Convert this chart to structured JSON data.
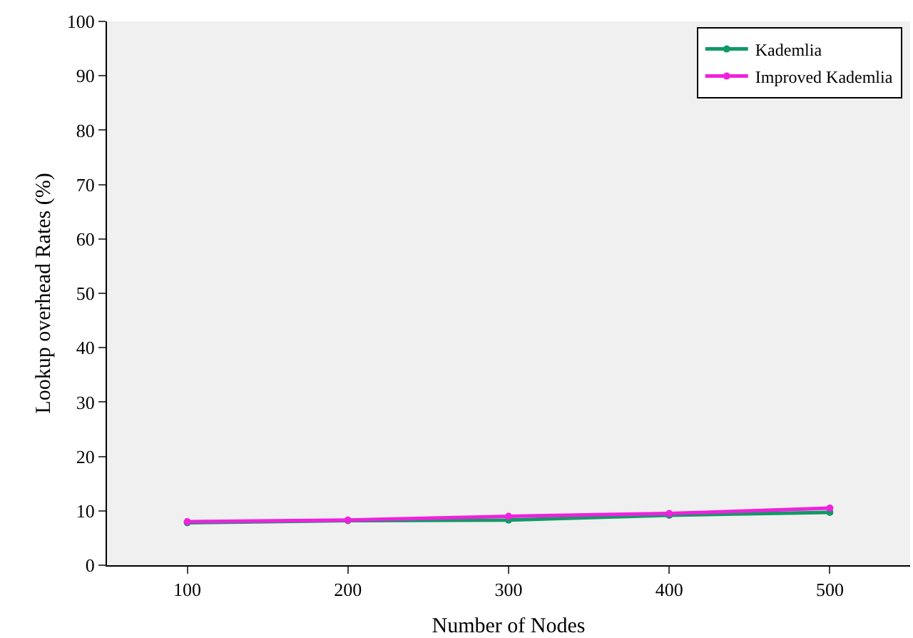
{
  "chart_data": {
    "type": "line",
    "xlabel": "Number of Nodes",
    "ylabel": "Lookup overhead Rates (%)",
    "x": [
      100,
      200,
      300,
      400,
      500
    ],
    "series": [
      {
        "name": "Kademlia",
        "color": "#119966",
        "values": [
          7.8,
          8.2,
          8.3,
          9.2,
          9.7
        ]
      },
      {
        "name": "Improved Kademlia",
        "color": "#ee22dd",
        "values": [
          8.0,
          8.3,
          9.0,
          9.5,
          10.5
        ]
      }
    ],
    "xlim": [
      50,
      550
    ],
    "xticks": [
      100,
      200,
      300,
      400,
      500
    ],
    "ylim": [
      0,
      100
    ],
    "yticks": [
      0,
      10,
      20,
      30,
      40,
      50,
      60,
      70,
      80,
      90,
      100
    ],
    "grid": false,
    "legend": "top right",
    "marker": "circle",
    "line_style": "solid"
  }
}
